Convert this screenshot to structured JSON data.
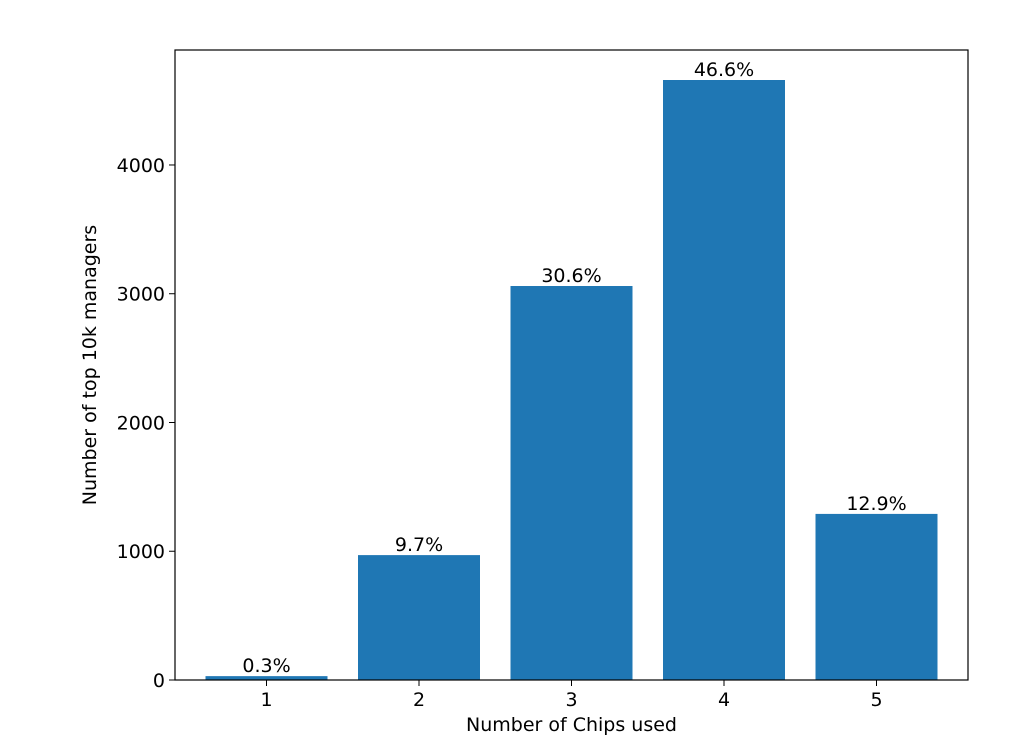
{
  "chart_data": {
    "type": "bar",
    "categories": [
      "1",
      "2",
      "3",
      "4",
      "5"
    ],
    "values": [
      30,
      970,
      3060,
      4660,
      1290
    ],
    "data_labels": [
      "0.3%",
      "9.7%",
      "30.6%",
      "46.6%",
      "12.9%"
    ],
    "xlabel": "Number of Chips used",
    "ylabel": "Number of top 10k managers",
    "ylim": [
      0,
      4893
    ],
    "yticks": [
      0,
      1000,
      2000,
      3000,
      4000
    ],
    "ytick_labels": [
      "0",
      "1000",
      "2000",
      "3000",
      "4000"
    ],
    "grid": false,
    "bar_color": "#1f77b4"
  }
}
